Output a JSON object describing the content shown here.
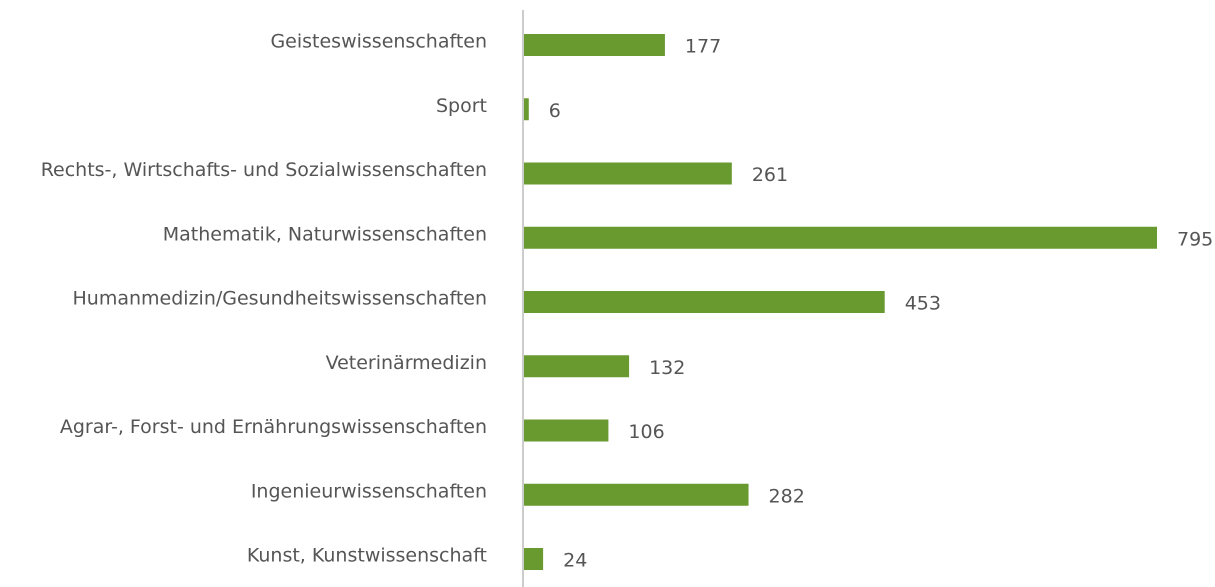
{
  "chart_data": {
    "type": "barh",
    "categories": [
      "Geisteswissenschaften",
      "Sport",
      "Rechts-, Wirtschafts- und Sozialwissenschaften",
      "Mathematik, Naturwissenschaften",
      "Humanmedizin/Gesundheitswissenschaften",
      "Veterinärmedizin",
      "Agrar-, Forst- und Ernährungswissenschaften",
      "Ingenieurwissenschaften",
      "Kunst, Kunstwissenschaft"
    ],
    "values": [
      177,
      6,
      261,
      795,
      453,
      132,
      106,
      282,
      24
    ],
    "color": "#689a30"
  }
}
